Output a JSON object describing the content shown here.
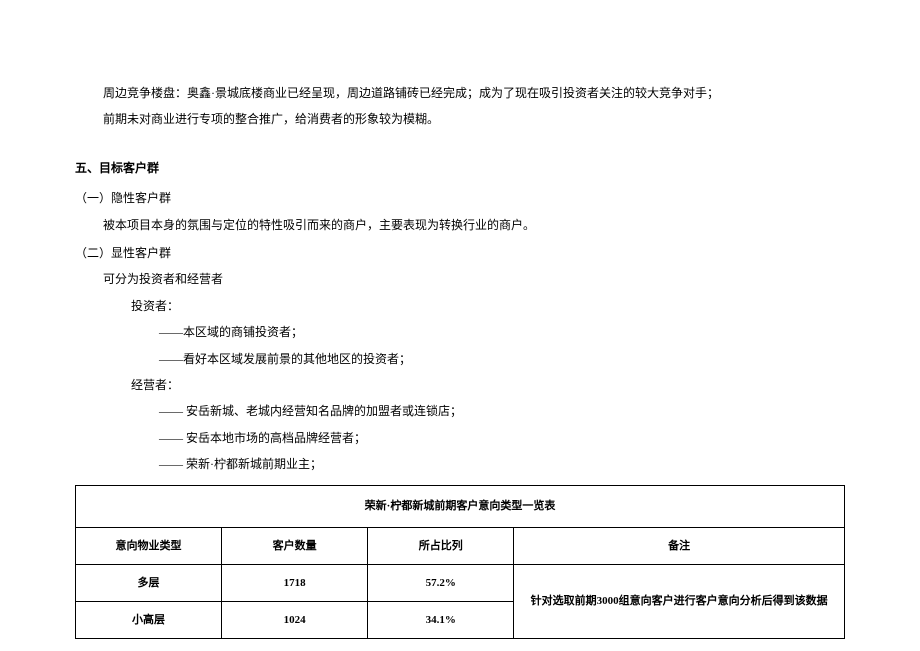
{
  "intro": {
    "line1": "周边竞争楼盘：奥鑫·景城底楼商业已经呈现，周边道路铺砖已经完成；成为了现在吸引投资者关注的较大竞争对手；",
    "line2": "前期未对商业进行专项的整合推广，给消费者的形象较为模糊。"
  },
  "section5": {
    "title": "五、目标客户群",
    "sub1": {
      "title": "（一）隐性客户群",
      "body": "被本项目本身的氛围与定位的特性吸引而来的商户，主要表现为转换行业的商户。"
    },
    "sub2": {
      "title": "（二）显性客户群",
      "body": "可分为投资者和经营者",
      "investor_label": "投资者：",
      "investor_items": [
        "——本区域的商铺投资者；",
        "——看好本区域发展前景的其他地区的投资者；"
      ],
      "operator_label": "经营者：",
      "operator_items": [
        "—— 安岳新城、老城内经营知名品牌的加盟者或连锁店；",
        "—— 安岳本地市场的高档品牌经营者；",
        "—— 荣新·柠都新城前期业主；"
      ]
    }
  },
  "table": {
    "title": "荣新·柠都新城前期客户意向类型一览表",
    "headers": {
      "type": "意向物业类型",
      "count": "客户数量",
      "ratio": "所占比列",
      "note": "备注"
    },
    "rows": [
      {
        "type": "多层",
        "count": "1718",
        "ratio": "57.2%"
      },
      {
        "type": "小高层",
        "count": "1024",
        "ratio": "34.1%"
      }
    ],
    "note": "针对选取前期3000组意向客户进行客户意向分析后得到该数据"
  }
}
